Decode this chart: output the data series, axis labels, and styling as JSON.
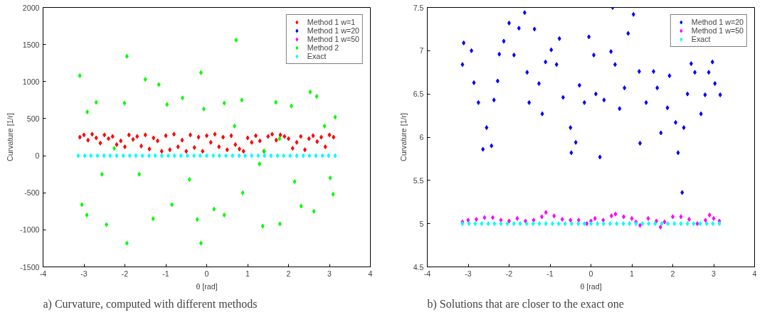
{
  "chart_data": [
    {
      "type": "scatter",
      "xlabel": "θ [rad]",
      "ylabel": "Curvature [1/r]",
      "xlim": [
        -4,
        4
      ],
      "ylim": [
        -1500,
        2000
      ],
      "xticks": [
        -4,
        -3,
        -2,
        -1,
        0,
        1,
        2,
        3,
        4
      ],
      "yticks": [
        -1500,
        -1000,
        -500,
        0,
        500,
        1000,
        1500,
        2000
      ],
      "grid": false,
      "legend": "top right",
      "marker": "diamond",
      "annotations": [
        "a) Curvature, computed with different methods"
      ],
      "series": [
        {
          "name": "Method 1 w=1",
          "color": "#ff0000",
          "x": [
            -3.1,
            -3.0,
            -2.9,
            -2.8,
            -2.7,
            -2.6,
            -2.5,
            -2.4,
            -2.3,
            -2.2,
            -2.1,
            -2.0,
            -1.9,
            -1.8,
            -1.7,
            -1.6,
            -1.5,
            -1.4,
            -1.3,
            -1.2,
            -1.1,
            -1.0,
            -0.9,
            -0.8,
            -0.7,
            -0.6,
            -0.5,
            -0.4,
            -0.3,
            -0.2,
            -0.1,
            0.0,
            0.1,
            0.2,
            0.3,
            0.4,
            0.5,
            0.6,
            0.7,
            0.8,
            0.9,
            1.0,
            1.1,
            1.2,
            1.3,
            1.4,
            1.5,
            1.6,
            1.7,
            1.8,
            1.9,
            2.0,
            2.1,
            2.2,
            2.3,
            2.4,
            2.5,
            2.6,
            2.7,
            2.8,
            2.9,
            3.0,
            3.1
          ],
          "values": [
            250,
            280,
            210,
            290,
            240,
            170,
            280,
            230,
            260,
            150,
            200,
            120,
            280,
            220,
            260,
            130,
            280,
            90,
            240,
            200,
            60,
            270,
            80,
            290,
            120,
            210,
            60,
            280,
            110,
            250,
            60,
            270,
            180,
            290,
            120,
            250,
            80,
            270,
            150,
            90,
            60,
            240,
            180,
            270,
            200,
            60,
            260,
            290,
            210,
            280,
            260,
            230,
            100,
            180,
            260,
            80,
            230,
            270,
            190,
            250,
            120,
            280,
            250
          ]
        },
        {
          "name": "Method 1 w=20",
          "color": "#0000ff"
        },
        {
          "name": "Method 1 w=50",
          "color": "#ff00ff"
        },
        {
          "name": "Method 2",
          "color": "#00ff00",
          "x": [
            -3.1,
            -3.05,
            -2.93,
            -2.92,
            -2.7,
            -2.45,
            -1.95,
            -1.95,
            -2.01,
            -1.5,
            -1.31,
            -1.17,
            -0.85,
            -0.97,
            -0.59,
            -0.23,
            -0.14,
            -0.14,
            -0.07,
            0.18,
            0.43,
            0.43,
            0.72,
            0.86,
            0.88,
            1.37,
            1.69,
            1.79,
            2.07,
            2.31,
            2.53,
            2.62,
            2.69,
            3.14,
            3.09,
            3.02,
            2.88,
            2.15,
            1.41,
            0.68,
            -0.42,
            -1.65,
            -2.56,
            -2.26,
            1.29,
            1.78
          ],
          "values": [
            1080,
            -660,
            -800,
            590,
            720,
            -930,
            1340,
            -1180,
            710,
            1030,
            -850,
            960,
            -660,
            690,
            780,
            -860,
            -1180,
            1120,
            630,
            -720,
            -800,
            710,
            1560,
            750,
            -500,
            -950,
            720,
            -920,
            670,
            -680,
            860,
            -750,
            800,
            520,
            -520,
            -300,
            400,
            -350,
            60,
            400,
            -320,
            -250,
            -250,
            100,
            -110,
            230
          ]
        },
        {
          "name": "Exact",
          "color": "#00ffff",
          "x": [
            -3.14,
            -2.98,
            -2.83,
            -2.67,
            -2.51,
            -2.36,
            -2.2,
            -2.04,
            -1.88,
            -1.73,
            -1.57,
            -1.41,
            -1.26,
            -1.1,
            -0.94,
            -0.79,
            -0.63,
            -0.47,
            -0.31,
            -0.16,
            0.0,
            0.16,
            0.31,
            0.47,
            0.63,
            0.79,
            0.94,
            1.1,
            1.26,
            1.41,
            1.57,
            1.73,
            1.88,
            2.04,
            2.2,
            2.36,
            2.51,
            2.67,
            2.83,
            2.98,
            3.14
          ],
          "values": [
            0,
            0,
            0,
            0,
            0,
            0,
            0,
            0,
            0,
            0,
            0,
            0,
            0,
            0,
            0,
            0,
            0,
            0,
            0,
            0,
            0,
            0,
            0,
            0,
            0,
            0,
            0,
            0,
            0,
            0,
            0,
            0,
            0,
            0,
            0,
            0,
            0,
            0,
            0,
            0,
            0
          ]
        }
      ]
    },
    {
      "type": "scatter",
      "xlabel": "θ [rad]",
      "ylabel": "Curvature [1/r]",
      "xlim": [
        -4,
        4
      ],
      "ylim": [
        4.5,
        7.5
      ],
      "xticks": [
        -4,
        -3,
        -2,
        -1,
        0,
        1,
        2,
        3,
        4
      ],
      "yticks": [
        4.5,
        5,
        5.5,
        6,
        6.5,
        7,
        7.5
      ],
      "grid": false,
      "legend": "top right",
      "marker": "diamond",
      "annotations": [
        "b) Solutions that are closer to the exact one"
      ],
      "series": [
        {
          "name": "Method 1 w=20",
          "color": "#0000ff",
          "x": [
            -3.11,
            -3.14,
            -2.92,
            -2.86,
            -2.75,
            -2.64,
            -2.55,
            -2.43,
            -2.37,
            -2.28,
            -2.24,
            -2.13,
            -2.0,
            -1.88,
            -1.76,
            -1.62,
            -1.56,
            -1.51,
            -1.38,
            -1.27,
            -1.19,
            -1.11,
            -0.97,
            -0.84,
            -0.77,
            -0.68,
            -0.5,
            -0.48,
            -0.37,
            -0.28,
            -0.16,
            -0.05,
            0.07,
            0.12,
            0.22,
            0.32,
            0.49,
            0.53,
            0.59,
            0.7,
            0.82,
            0.91,
            1.04,
            1.18,
            1.2,
            1.35,
            1.53,
            1.62,
            1.71,
            1.87,
            1.92,
            2.07,
            2.13,
            2.23,
            2.27,
            2.36,
            2.45,
            2.54,
            2.69,
            2.79,
            2.88,
            2.97,
            3.03,
            3.16
          ],
          "values": [
            7.09,
            6.84,
            7.0,
            6.63,
            6.4,
            5.86,
            6.11,
            5.9,
            6.43,
            6.65,
            6.96,
            7.11,
            7.32,
            6.95,
            7.26,
            7.44,
            6.75,
            6.4,
            7.25,
            6.62,
            6.27,
            6.87,
            7.01,
            6.84,
            7.14,
            6.46,
            6.11,
            5.82,
            5.94,
            6.6,
            6.4,
            7.16,
            6.95,
            6.5,
            5.77,
            6.43,
            6.99,
            7.5,
            6.84,
            6.33,
            6.57,
            7.2,
            7.42,
            6.76,
            5.93,
            6.4,
            6.76,
            6.57,
            6.05,
            6.34,
            6.71,
            6.17,
            5.82,
            5.36,
            6.11,
            6.5,
            6.85,
            6.75,
            6.27,
            6.49,
            6.75,
            6.87,
            6.62,
            6.49
          ]
        },
        {
          "name": "Method 1 w=50",
          "color": "#ff00ff",
          "x": [
            -3.14,
            -3.0,
            -2.8,
            -2.6,
            -2.4,
            -2.2,
            -2.0,
            -1.8,
            -1.6,
            -1.4,
            -1.2,
            -1.1,
            -0.9,
            -0.7,
            -0.5,
            -0.3,
            -0.1,
            0.0,
            0.1,
            0.3,
            0.5,
            0.6,
            0.8,
            1.0,
            1.1,
            1.2,
            1.4,
            1.6,
            1.7,
            1.8,
            2.0,
            2.2,
            2.4,
            2.6,
            2.8,
            2.9,
            3.0,
            3.14
          ],
          "values": [
            5.02,
            5.04,
            5.05,
            5.07,
            5.07,
            5.04,
            5.03,
            5.06,
            5.03,
            5.04,
            5.08,
            5.13,
            5.09,
            5.05,
            5.04,
            5.04,
            5.0,
            5.03,
            5.06,
            5.04,
            5.09,
            5.11,
            5.08,
            5.06,
            5.02,
            4.98,
            5.06,
            5.03,
            4.96,
            5.02,
            5.08,
            5.08,
            5.05,
            5.0,
            5.04,
            5.1,
            5.06,
            5.03
          ]
        },
        {
          "name": "Exact",
          "color": "#00ffff",
          "x": [
            -3.14,
            -2.98,
            -2.83,
            -2.67,
            -2.51,
            -2.36,
            -2.2,
            -2.04,
            -1.88,
            -1.73,
            -1.57,
            -1.41,
            -1.26,
            -1.1,
            -0.94,
            -0.79,
            -0.63,
            -0.47,
            -0.31,
            -0.16,
            0.0,
            0.16,
            0.31,
            0.47,
            0.63,
            0.79,
            0.94,
            1.1,
            1.26,
            1.41,
            1.57,
            1.73,
            1.88,
            2.04,
            2.2,
            2.36,
            2.51,
            2.67,
            2.83,
            2.98,
            3.14
          ],
          "values": [
            5,
            5,
            5,
            5,
            5,
            5,
            5,
            5,
            5,
            5,
            5,
            5,
            5,
            5,
            5,
            5,
            5,
            5,
            5,
            5,
            5,
            5,
            5,
            5,
            5,
            5,
            5,
            5,
            5,
            5,
            5,
            5,
            5,
            5,
            5,
            5,
            5,
            5,
            5,
            5,
            5
          ]
        }
      ]
    }
  ]
}
